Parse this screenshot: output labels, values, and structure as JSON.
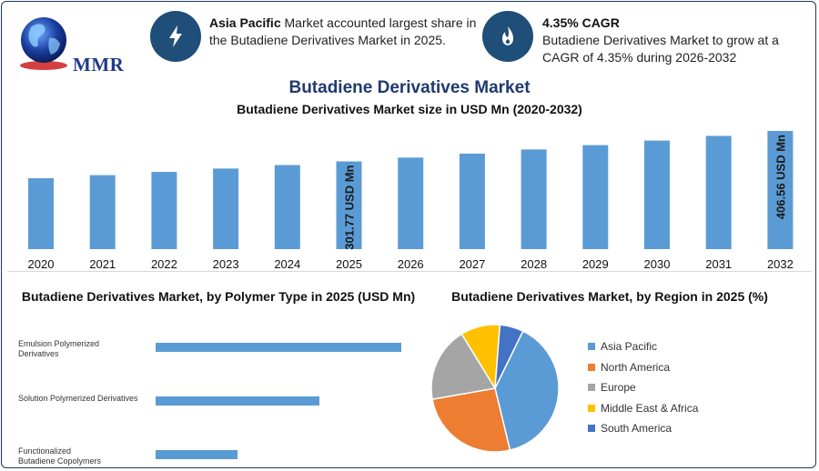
{
  "header": {
    "logo_text": "MMR",
    "info1": {
      "bold": "Asia Pacific",
      "text": " Market accounted largest share in the Butadiene Derivatives Market in 2025."
    },
    "info2": {
      "bold": "4.35% CAGR",
      "text": "Butadiene Derivatives Market to grow at a CAGR of 4.35% during 2026-2032"
    }
  },
  "title": "Butadiene Derivatives Market",
  "subtitle": "Butadiene Derivatives Market size in USD Mn (2020-2032)",
  "colors": {
    "bar": "#5b9bd5",
    "icon_bg": "#1f4e79",
    "title": "#1f3a6e"
  },
  "chart_data": [
    {
      "type": "bar",
      "title": "Butadiene Derivatives Market size in USD Mn (2020-2032)",
      "categories": [
        "2020",
        "2021",
        "2022",
        "2023",
        "2024",
        "2025",
        "2026",
        "2027",
        "2028",
        "2029",
        "2030",
        "2031",
        "2032"
      ],
      "values": [
        243.9,
        254.5,
        265.6,
        277.2,
        289.2,
        301.77,
        314.9,
        328.6,
        342.9,
        357.8,
        373.4,
        389.6,
        406.56
      ],
      "data_labels": {
        "2025": "301.77 USD Mn",
        "2032": "406.56 USD Mn"
      },
      "ylim": [
        0,
        420
      ],
      "grid": false
    },
    {
      "type": "bar",
      "orientation": "horizontal",
      "title": "Butadiene Derivatives Market, by Polymer Type in 2025 (USD Mn)",
      "categories": [
        "Emulsion Polymerized Derivatives",
        "Solution Polymerized Derivatives",
        "Functionalized Butadiene Copolymers"
      ],
      "values": [
        150,
        100,
        50
      ],
      "xlim": [
        0,
        150
      ]
    },
    {
      "type": "pie",
      "title": "Butadiene Derivatives Market, by Region in 2025 (%)",
      "categories": [
        "Asia Pacific",
        "North America",
        "Europe",
        "Middle East & Africa",
        "South America"
      ],
      "values": [
        39,
        26,
        19,
        10,
        6
      ],
      "colors": [
        "#5b9bd5",
        "#ed7d31",
        "#a5a5a5",
        "#ffc000",
        "#4472c4"
      ],
      "legend_position": "right"
    }
  ]
}
